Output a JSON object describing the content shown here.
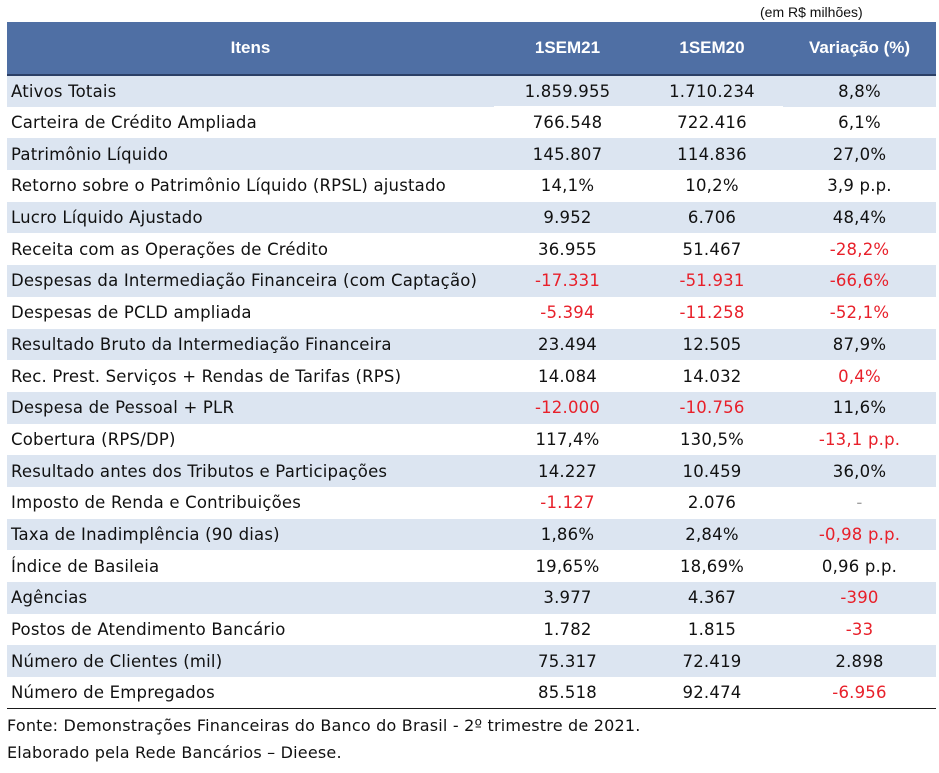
{
  "units_note": "(em R$ milhões)",
  "header": {
    "col0": "Itens",
    "col1": "1SEM21",
    "col2": "1SEM20",
    "col3": "Variação (%)"
  },
  "rows": [
    {
      "label": "Ativos Totais",
      "v1": "1.859.955",
      "v2": "1.710.234",
      "v3": "8,8%"
    },
    {
      "label": "Carteira de Crédito Ampliada",
      "v1": "766.548",
      "v2": "722.416",
      "v3": "6,1%"
    },
    {
      "label": "Patrimônio Líquido",
      "v1": "145.807",
      "v2": "114.836",
      "v3": "27,0%"
    },
    {
      "label": "Retorno sobre o Patrimônio Líquido (RPSL) ajustado",
      "v1": "14,1%",
      "v2": "10,2%",
      "v3": "3,9 p.p."
    },
    {
      "label": "Lucro Líquido Ajustado",
      "v1": "9.952",
      "v2": "6.706",
      "v3": "48,4%"
    },
    {
      "label": "Receita com as Operações de Crédito",
      "v1": "36.955",
      "v2": "51.467",
      "v3": "-28,2%"
    },
    {
      "label": "Despesas da Intermediação Financeira (com Captação)",
      "v1": "-17.331",
      "v2": "-51.931",
      "v3": "-66,6%"
    },
    {
      "label": "Despesas de PCLD ampliada",
      "v1": "-5.394",
      "v2": "-11.258",
      "v3": "-52,1%"
    },
    {
      "label": "Resultado Bruto da Intermediação Financeira",
      "v1": "23.494",
      "v2": "12.505",
      "v3": "87,9%"
    },
    {
      "label": "Rec. Prest. Serviços + Rendas de Tarifas (RPS)",
      "v1": "14.084",
      "v2": "14.032",
      "v3": "0,4%"
    },
    {
      "label": "Despesa de Pessoal + PLR",
      "v1": "-12.000",
      "v2": "-10.756",
      "v3": "11,6%"
    },
    {
      "label": "Cobertura (RPS/DP)",
      "v1": "117,4%",
      "v2": "130,5%",
      "v3": "-13,1 p.p."
    },
    {
      "label": "Resultado antes dos Tributos e Participações",
      "v1": "14.227",
      "v2": "10.459",
      "v3": "36,0%"
    },
    {
      "label": "Imposto de Renda e Contribuições",
      "v1": "-1.127",
      "v2": "2.076",
      "v3": "-"
    },
    {
      "label": "Taxa de Inadimplência (90 dias)",
      "v1": "1,86%",
      "v2": "2,84%",
      "v3": "-0,98 p.p."
    },
    {
      "label": "Índice de Basileia",
      "v1": "19,65%",
      "v2": "18,69%",
      "v3": "0,96 p.p."
    },
    {
      "label": "Agências",
      "v1": "3.977",
      "v2": "4.367",
      "v3": "-390"
    },
    {
      "label": "Postos de Atendimento Bancário",
      "v1": "1.782",
      "v2": "1.815",
      "v3": "-33"
    },
    {
      "label": "Número de Clientes (mil)",
      "v1": "75.317",
      "v2": "72.419",
      "v3": "2.898"
    },
    {
      "label": "Número de Empregados",
      "v1": "85.518",
      "v2": "92.474",
      "v3": "-6.956"
    }
  ],
  "footer": {
    "source": "Fonte: Demonstrações Financeiras do Banco do Brasil - 2º trimestre de 2021.",
    "credit": "Elaborado pela Rede Bancários – Dieese."
  },
  "colors": {
    "header_bg": "#4f6fa4",
    "band_bg": "#dce5f1",
    "negative_text": "#e8202a"
  }
}
